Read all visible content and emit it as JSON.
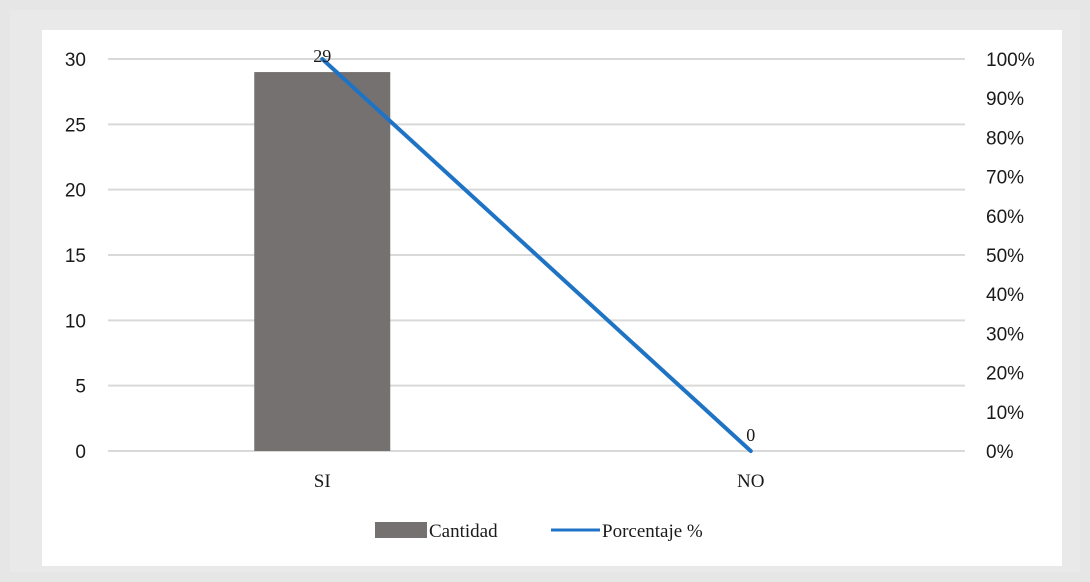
{
  "chart_data": {
    "type": "bar",
    "categories": [
      "SI",
      "NO"
    ],
    "series": [
      {
        "name": "Cantidad",
        "type": "bar",
        "axis": "left",
        "values": [
          29,
          0
        ],
        "color": "#767171"
      },
      {
        "name": "Porcentaje %",
        "type": "line",
        "axis": "right",
        "values": [
          100,
          0
        ],
        "color": "#1f73c4"
      }
    ],
    "data_labels": [
      "29",
      "0"
    ],
    "left_axis": {
      "ylim": [
        0,
        30
      ],
      "ticks": [
        0,
        5,
        10,
        15,
        20,
        25,
        30
      ],
      "tick_labels": [
        "0",
        "5",
        "10",
        "15",
        "20",
        "25",
        "30"
      ]
    },
    "right_axis": {
      "ylim": [
        0,
        100
      ],
      "ticks": [
        0,
        10,
        20,
        30,
        40,
        50,
        60,
        70,
        80,
        90,
        100
      ],
      "tick_labels": [
        "0%",
        "10%",
        "20%",
        "30%",
        "40%",
        "50%",
        "60%",
        "70%",
        "80%",
        "90%",
        "100%"
      ]
    },
    "grid": true,
    "legend": "bottom",
    "colors": {
      "gridline": "#d9d9d9",
      "text": "#1a1a1a"
    }
  }
}
